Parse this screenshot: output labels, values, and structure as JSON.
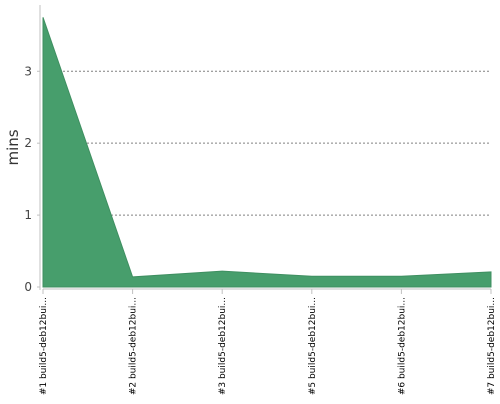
{
  "chart_data": {
    "type": "area",
    "title": "",
    "xlabel": "",
    "ylabel": "mins",
    "categories": [
      "#1 build5-deb12bui...",
      "#2 build5-deb12bui...",
      "#3 build5-deb12bui...",
      "#5 build5-deb12bui...",
      "#6 build5-deb12bui...",
      "#7 build5-deb12bui..."
    ],
    "series": [
      {
        "values": [
          3.75,
          0.14,
          0.22,
          0.15,
          0.15,
          0.21
        ]
      }
    ],
    "ylim": [
      0,
      3.88
    ],
    "yticks": [
      0,
      1,
      2,
      3
    ],
    "grid": true,
    "legend": "none",
    "colors": {
      "fill": "#479e6c",
      "stroke": "#3f8f61",
      "grid": "#808080",
      "axis": "#c0c0c0"
    }
  }
}
